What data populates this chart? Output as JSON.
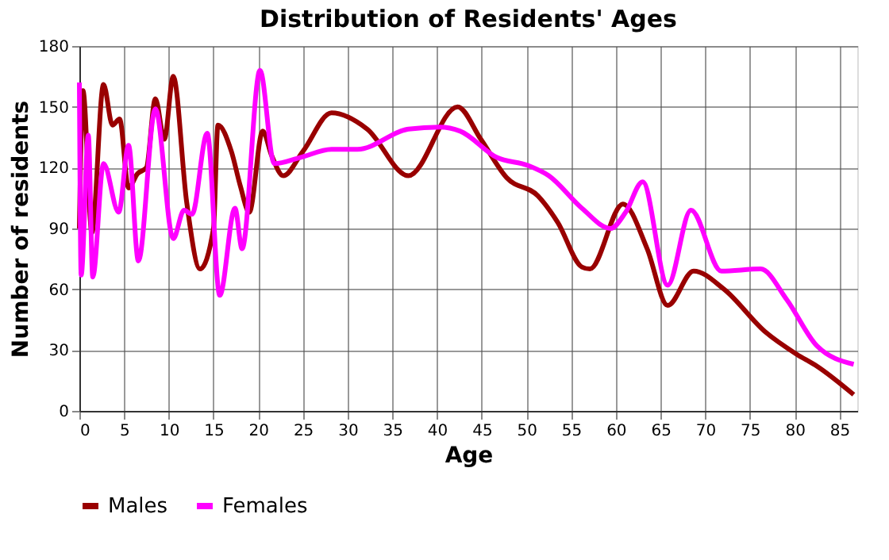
{
  "chart_data": {
    "type": "line",
    "title": "Distribution of Residents' Ages",
    "xlabel": "Age",
    "ylabel": "Number of residents",
    "xlim": [
      0,
      87
    ],
    "xticks": [
      0,
      5,
      10,
      15,
      20,
      25,
      30,
      35,
      40,
      45,
      50,
      55,
      60,
      65,
      70,
      75,
      80,
      85
    ],
    "ylim": [
      0,
      180
    ],
    "yticks": [
      0,
      30,
      60,
      90,
      120,
      150,
      180
    ],
    "grid": true,
    "legend": "bottom",
    "line_style": "solid",
    "series": [
      {
        "name": "Males",
        "color": "#990000",
        "x": [
          0,
          0.4,
          1.4,
          2.7,
          3.7,
          4.5,
          5.5,
          6.5,
          7.5,
          8.5,
          9.5,
          10.5,
          12,
          13.5,
          15,
          15.5,
          17,
          18,
          19,
          20.5,
          21.5,
          22.8,
          25,
          28.2,
          32.2,
          36.8,
          42.3,
          44.9,
          47.8,
          51.3,
          53.5,
          56.2,
          57.1,
          60.8,
          63.5,
          65.8,
          68.7,
          72.1,
          76.7,
          80.2,
          82.5,
          86.6
        ],
        "values": [
          90,
          158,
          88,
          161,
          141,
          144,
          110,
          117,
          120,
          154,
          134,
          165,
          103,
          70,
          90,
          141,
          128,
          111,
          98,
          138,
          126,
          116,
          128,
          147,
          139,
          116,
          150,
          134,
          115,
          106,
          93,
          71,
          70,
          102,
          80,
          52,
          69,
          60,
          39,
          28,
          22,
          8
        ]
      },
      {
        "name": "Females",
        "color": "#ff00ff",
        "x": [
          0,
          0.2,
          1,
          1.5,
          2.7,
          4.4,
          5.5,
          6.6,
          8.5,
          10.5,
          11.7,
          12.6,
          14.3,
          15.7,
          17.4,
          18.2,
          20.2,
          21.8,
          24.7,
          28.2,
          31.1,
          36.8,
          40.3,
          42.6,
          46.7,
          50.2,
          52.5,
          56.2,
          59.4,
          61.1,
          63,
          65.8,
          68.4,
          71.8,
          76.2,
          79.1,
          82.5,
          86.6
        ],
        "values": [
          162,
          67,
          136,
          66,
          122,
          98,
          131,
          74,
          149,
          85,
          99,
          97,
          137,
          57,
          100,
          80,
          168,
          122,
          125,
          129,
          129,
          139,
          140,
          138,
          125,
          121,
          116,
          100,
          90,
          98,
          113,
          62,
          99,
          69,
          70,
          55,
          32,
          23
        ]
      }
    ]
  }
}
